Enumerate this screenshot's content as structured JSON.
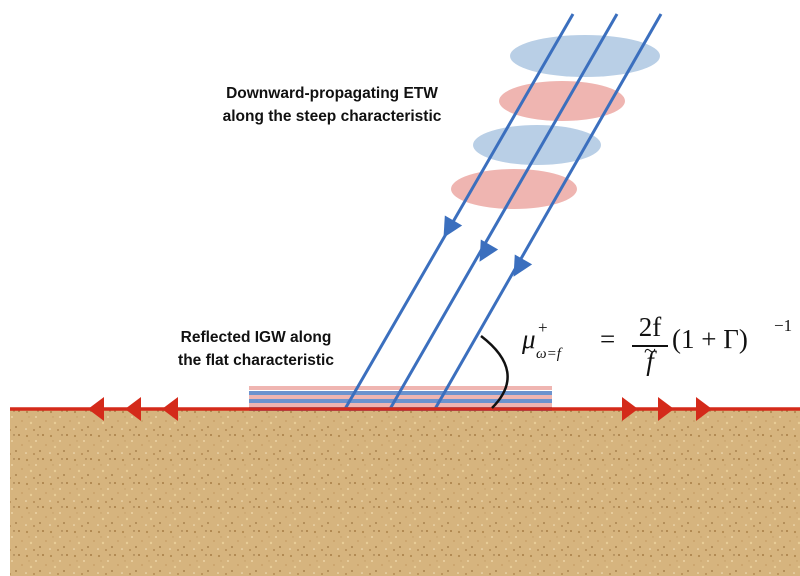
{
  "labels": {
    "etw_line1": "Downward-propagating ETW",
    "etw_line2": "along the steep characteristic",
    "igw_line1": "Reflected IGW along",
    "igw_line2": "the flat characteristic"
  },
  "equation": {
    "symbol": "μ",
    "superscript": "+",
    "subscript": "ω=f",
    "equals": "=",
    "numerator": "2f",
    "denominator": "f",
    "tilde": "~",
    "factor": "(1 + Γ)",
    "exponent": "−1"
  },
  "colors": {
    "ground_line": "#d42a1a",
    "ray": "#3b6fbe",
    "blue_packet": "#b9cfe6",
    "red_packet": "#efb5b1",
    "sand": "#d6b47e",
    "sand_dark": "#b38b52",
    "angle_arc": "#111111"
  }
}
